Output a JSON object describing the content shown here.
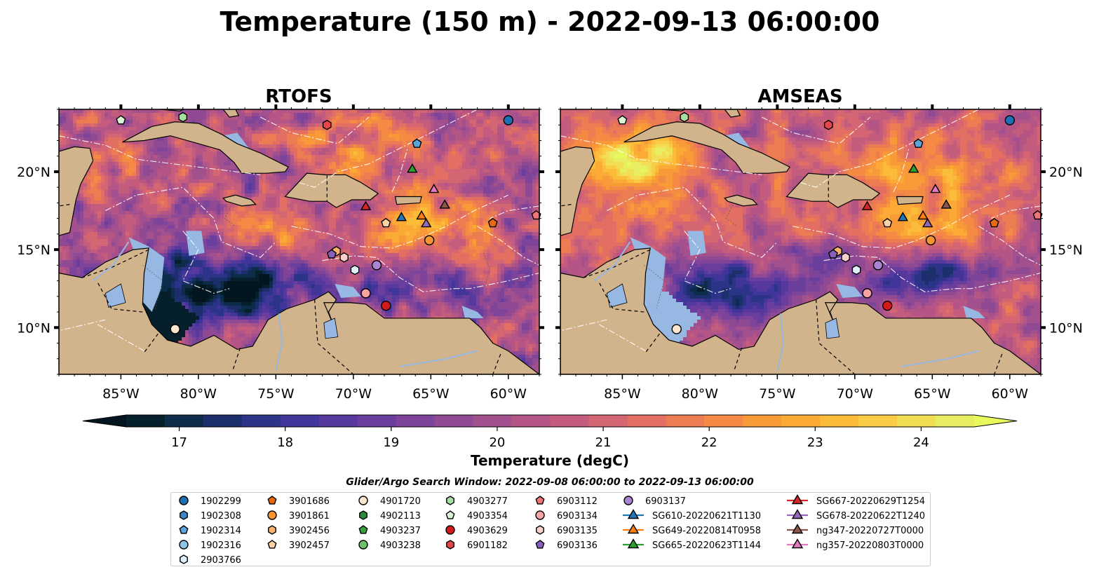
{
  "figure": {
    "title": "Temperature (150 m) - 2022-09-13 06:00:00"
  },
  "chart_data": [
    {
      "type": "heatmap",
      "title": "RTOFS",
      "xlabel": "",
      "ylabel": "",
      "x_ticks": [
        "85°W",
        "80°W",
        "75°W",
        "70°W",
        "65°W",
        "60°W"
      ],
      "y_ticks": [
        "10°N",
        "15°N",
        "20°N"
      ],
      "xlim": [
        -89,
        -58
      ],
      "ylim": [
        7,
        24
      ],
      "colormap": "thermal",
      "markers": "shared"
    },
    {
      "type": "heatmap",
      "title": "AMSEAS",
      "xlabel": "",
      "ylabel": "",
      "x_ticks": [
        "85°W",
        "80°W",
        "75°W",
        "70°W",
        "65°W",
        "60°W"
      ],
      "y_ticks": [
        "10°N",
        "15°N",
        "20°N"
      ],
      "xlim": [
        -89,
        -58
      ],
      "ylim": [
        7,
        24
      ],
      "colormap": "thermal",
      "markers": "shared"
    }
  ],
  "colorbar": {
    "label": "Temperature (degC)",
    "ticks": [
      "17",
      "18",
      "19",
      "20",
      "21",
      "22",
      "23",
      "24"
    ],
    "tick_values": [
      17,
      18,
      19,
      20,
      21,
      22,
      23,
      24
    ],
    "min": 16.5,
    "max": 24.5,
    "extend": "both",
    "colors": [
      "#05202c",
      "#0d2c4a",
      "#1c2e6b",
      "#2c3488",
      "#41359a",
      "#57389d",
      "#6a3e9c",
      "#7d4499",
      "#904a94",
      "#a3508e",
      "#b45586",
      "#c45c7d",
      "#d46572",
      "#e26f62",
      "#ec7c52",
      "#f48a43",
      "#f89a38",
      "#fbab35",
      "#fbbc39",
      "#f8cd45",
      "#f2de55",
      "#e8ee62"
    ],
    "under_color": "#03161f",
    "over_color": "#e8fa5b"
  },
  "legend": {
    "title": "Glider/Argo Search Window: 2022-09-08 06:00:00 to 2022-09-13 06:00:00",
    "columns": [
      [
        {
          "label": "1902299",
          "marker": "circle",
          "color": "#1f6fb4"
        },
        {
          "label": "1902308",
          "marker": "hexagon",
          "color": "#3b86c6"
        },
        {
          "label": "1902314",
          "marker": "pentagon",
          "color": "#5aa6db"
        },
        {
          "label": "1902316",
          "marker": "circle",
          "color": "#8ec4e8"
        },
        {
          "label": "2903766",
          "marker": "hexagon",
          "color": "#dff0fb"
        }
      ],
      [
        {
          "label": "3901686",
          "marker": "pentagon",
          "color": "#e86a10"
        },
        {
          "label": "3901861",
          "marker": "circle",
          "color": "#f49433"
        },
        {
          "label": "3902456",
          "marker": "hexagon",
          "color": "#f8b46f"
        },
        {
          "label": "3902457",
          "marker": "pentagon",
          "color": "#fbd3a5"
        }
      ],
      [
        {
          "label": "4901720",
          "marker": "circle",
          "color": "#fde6cf"
        },
        {
          "label": "4902113",
          "marker": "hexagon",
          "color": "#2b8b3a"
        },
        {
          "label": "4903237",
          "marker": "pentagon",
          "color": "#37a03f"
        },
        {
          "label": "4903238",
          "marker": "circle",
          "color": "#6cc26b"
        }
      ],
      [
        {
          "label": "4903277",
          "marker": "hexagon",
          "color": "#a6df9f"
        },
        {
          "label": "4903354",
          "marker": "pentagon",
          "color": "#dbf5d4"
        },
        {
          "label": "4903629",
          "marker": "circle",
          "color": "#d3191c"
        },
        {
          "label": "6901182",
          "marker": "hexagon",
          "color": "#e8464a"
        }
      ],
      [
        {
          "label": "6903112",
          "marker": "pentagon",
          "color": "#ef7576"
        },
        {
          "label": "6903134",
          "marker": "circle",
          "color": "#f6a3a1"
        },
        {
          "label": "6903135",
          "marker": "hexagon",
          "color": "#fbd0cc"
        },
        {
          "label": "6903136",
          "marker": "pentagon",
          "color": "#8860bc"
        }
      ],
      [
        {
          "label": "6903137",
          "marker": "circle",
          "color": "#a985d3"
        },
        {
          "label": "SG610-20220621T1130",
          "marker": "triangle",
          "color": "#1f77b4"
        },
        {
          "label": "SG649-20220814T0958",
          "marker": "triangle",
          "color": "#ff7f0e"
        },
        {
          "label": "SG665-20220623T1144",
          "marker": "triangle",
          "color": "#2ca02c"
        }
      ],
      [
        {
          "label": "SG667-20220629T1254",
          "marker": "triangle",
          "color": "#d62728"
        },
        {
          "label": "SG678-20220622T1240",
          "marker": "triangle",
          "color": "#9467bd"
        },
        {
          "label": "ng347-20220727T0000",
          "marker": "triangle",
          "color": "#8c564b"
        },
        {
          "label": "ng357-20220803T0000",
          "marker": "triangle",
          "color": "#e377c2"
        }
      ]
    ]
  },
  "platforms": [
    {
      "id": "1902299",
      "lon": -60.0,
      "lat": 23.3
    },
    {
      "id": "1902314",
      "lon": -65.9,
      "lat": 21.8
    },
    {
      "id": "4903354",
      "lon": -85.0,
      "lat": 23.3
    },
    {
      "id": "4903277",
      "lon": -81.0,
      "lat": 23.5
    },
    {
      "id": "6901182",
      "lon": -71.7,
      "lat": 23.0
    },
    {
      "id": "SG665-20220623T1144",
      "lon": -66.2,
      "lat": 20.2
    },
    {
      "id": "ng357-20220803T0000",
      "lon": -64.8,
      "lat": 18.9
    },
    {
      "id": "SG667-20220629T1254",
      "lon": -69.2,
      "lat": 17.8
    },
    {
      "id": "ng347-20220727T0000",
      "lon": -64.1,
      "lat": 17.9
    },
    {
      "id": "SG649-20220814T0958",
      "lon": -65.6,
      "lat": 17.2
    },
    {
      "id": "SG610-20220621T1130",
      "lon": -66.9,
      "lat": 17.1
    },
    {
      "id": "SG678-20220622T1240",
      "lon": -65.3,
      "lat": 16.7
    },
    {
      "id": "3902457",
      "lon": -67.9,
      "lat": 16.7
    },
    {
      "id": "3901686",
      "lon": -61.0,
      "lat": 16.7
    },
    {
      "id": "6903112",
      "lon": -58.2,
      "lat": 17.2
    },
    {
      "id": "3901861",
      "lon": -65.1,
      "lat": 15.6
    },
    {
      "id": "3902456",
      "lon": -71.1,
      "lat": 14.9
    },
    {
      "id": "6903136",
      "lon": -71.4,
      "lat": 14.7
    },
    {
      "id": "6903135",
      "lon": -70.6,
      "lat": 14.5
    },
    {
      "id": "6903137",
      "lon": -68.5,
      "lat": 14.0
    },
    {
      "id": "2903766",
      "lon": -69.9,
      "lat": 13.7
    },
    {
      "id": "6903134",
      "lon": -69.2,
      "lat": 12.2
    },
    {
      "id": "4903629",
      "lon": -67.9,
      "lat": 11.4
    },
    {
      "id": "4901720",
      "lon": -81.5,
      "lat": 9.9
    }
  ]
}
